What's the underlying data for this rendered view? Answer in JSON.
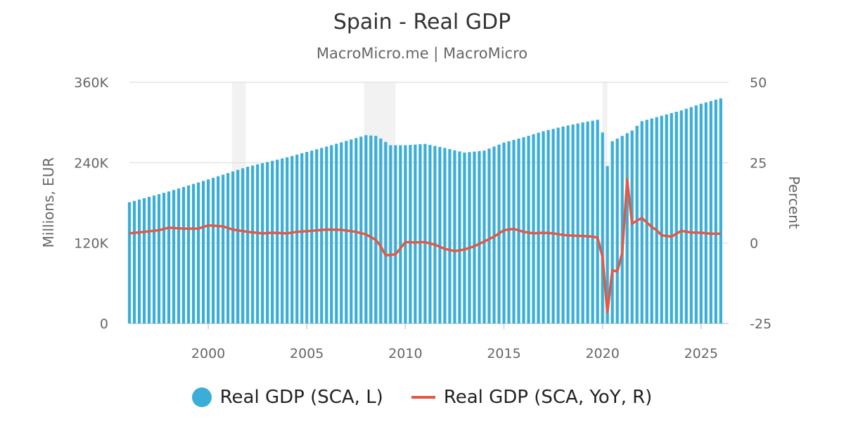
{
  "chart_data": {
    "type": "bar",
    "title": "Spain - Real GDP",
    "subtitle": "MacroMicro.me | MacroMicro",
    "y_left_label": "Millions, EUR",
    "y_right_label": "Percent",
    "y_left_range": [
      0,
      360000
    ],
    "y_left_ticks": [
      "0",
      "120K",
      "240K",
      "360K"
    ],
    "y_right_range": [
      -25,
      50
    ],
    "y_right_ticks": [
      "-25",
      "0",
      "25",
      "50"
    ],
    "x_ticks": [
      "2000",
      "2005",
      "2010",
      "2015",
      "2020",
      "2025"
    ],
    "x_range": [
      1996.0,
      2026.4
    ],
    "grid": true,
    "legend_position": "bottom",
    "recessions": [
      [
        2001.2,
        2001.9
      ],
      [
        2007.9,
        2009.5
      ],
      [
        2020.0,
        2020.25
      ]
    ],
    "series": [
      {
        "name": "Real GDP (SCA, L)",
        "type": "bar",
        "axis": "left",
        "color": "#3aaed8",
        "anchors": [
          [
            1996.0,
            181000
          ],
          [
            1998.0,
            197000
          ],
          [
            2000.0,
            215000
          ],
          [
            2002.0,
            234000
          ],
          [
            2004.0,
            248000
          ],
          [
            2006.0,
            264000
          ],
          [
            2008.0,
            281000
          ],
          [
            2008.5,
            280000
          ],
          [
            2008.75,
            276000
          ],
          [
            2009.25,
            266000
          ],
          [
            2010.0,
            266000
          ],
          [
            2011.0,
            268000
          ],
          [
            2012.0,
            262000
          ],
          [
            2013.0,
            255000
          ],
          [
            2014.0,
            258000
          ],
          [
            2015.0,
            270000
          ],
          [
            2016.0,
            278000
          ],
          [
            2017.0,
            287000
          ],
          [
            2018.0,
            294000
          ],
          [
            2019.0,
            300000
          ],
          [
            2019.75,
            304000
          ],
          [
            2020.0,
            285000
          ],
          [
            2020.25,
            235000
          ],
          [
            2020.5,
            272000
          ],
          [
            2020.75,
            276000
          ],
          [
            2021.0,
            280000
          ],
          [
            2021.5,
            288000
          ],
          [
            2022.0,
            302000
          ],
          [
            2023.0,
            310000
          ],
          [
            2024.0,
            318000
          ],
          [
            2025.0,
            328000
          ],
          [
            2026.0,
            336000
          ]
        ]
      },
      {
        "name": "Real GDP (SCA, YoY, R)",
        "type": "line",
        "axis": "right",
        "color": "#e05a44",
        "points": [
          [
            1996.0,
            3.0
          ],
          [
            1996.75,
            3.5
          ],
          [
            1997.5,
            4.0
          ],
          [
            1998.0,
            4.8
          ],
          [
            1998.75,
            4.5
          ],
          [
            1999.5,
            4.5
          ],
          [
            2000.0,
            5.5
          ],
          [
            2000.75,
            5.2
          ],
          [
            2001.25,
            4.2
          ],
          [
            2002.0,
            3.5
          ],
          [
            2002.75,
            3.0
          ],
          [
            2003.25,
            3.2
          ],
          [
            2004.0,
            3.0
          ],
          [
            2004.5,
            3.5
          ],
          [
            2005.25,
            3.8
          ],
          [
            2006.0,
            4.2
          ],
          [
            2006.75,
            4.1
          ],
          [
            2007.5,
            3.5
          ],
          [
            2008.0,
            2.7
          ],
          [
            2008.5,
            1.0
          ],
          [
            2008.75,
            -1.0
          ],
          [
            2009.0,
            -3.8
          ],
          [
            2009.5,
            -3.5
          ],
          [
            2010.0,
            0.3
          ],
          [
            2010.5,
            0.2
          ],
          [
            2011.0,
            0.3
          ],
          [
            2011.5,
            -0.5
          ],
          [
            2012.0,
            -1.8
          ],
          [
            2012.5,
            -2.5
          ],
          [
            2013.0,
            -2.0
          ],
          [
            2013.5,
            -1.0
          ],
          [
            2014.0,
            0.5
          ],
          [
            2014.5,
            2.0
          ],
          [
            2015.0,
            4.0
          ],
          [
            2015.5,
            4.4
          ],
          [
            2016.0,
            3.5
          ],
          [
            2016.5,
            3.0
          ],
          [
            2017.0,
            3.2
          ],
          [
            2017.5,
            3.0
          ],
          [
            2018.0,
            2.5
          ],
          [
            2018.5,
            2.3
          ],
          [
            2019.0,
            2.2
          ],
          [
            2019.5,
            2.0
          ],
          [
            2019.75,
            1.7
          ],
          [
            2020.0,
            -4.3
          ],
          [
            2020.25,
            -21.5
          ],
          [
            2020.5,
            -8.5
          ],
          [
            2020.75,
            -8.8
          ],
          [
            2021.0,
            -3.0
          ],
          [
            2021.25,
            19.8
          ],
          [
            2021.5,
            6.0
          ],
          [
            2021.75,
            7.0
          ],
          [
            2022.0,
            7.8
          ],
          [
            2022.5,
            5.0
          ],
          [
            2022.75,
            4.0
          ],
          [
            2023.0,
            2.4
          ],
          [
            2023.5,
            2.0
          ],
          [
            2024.0,
            3.8
          ],
          [
            2024.5,
            3.3
          ],
          [
            2025.0,
            3.2
          ],
          [
            2025.5,
            2.9
          ],
          [
            2026.0,
            2.9
          ]
        ]
      }
    ]
  }
}
